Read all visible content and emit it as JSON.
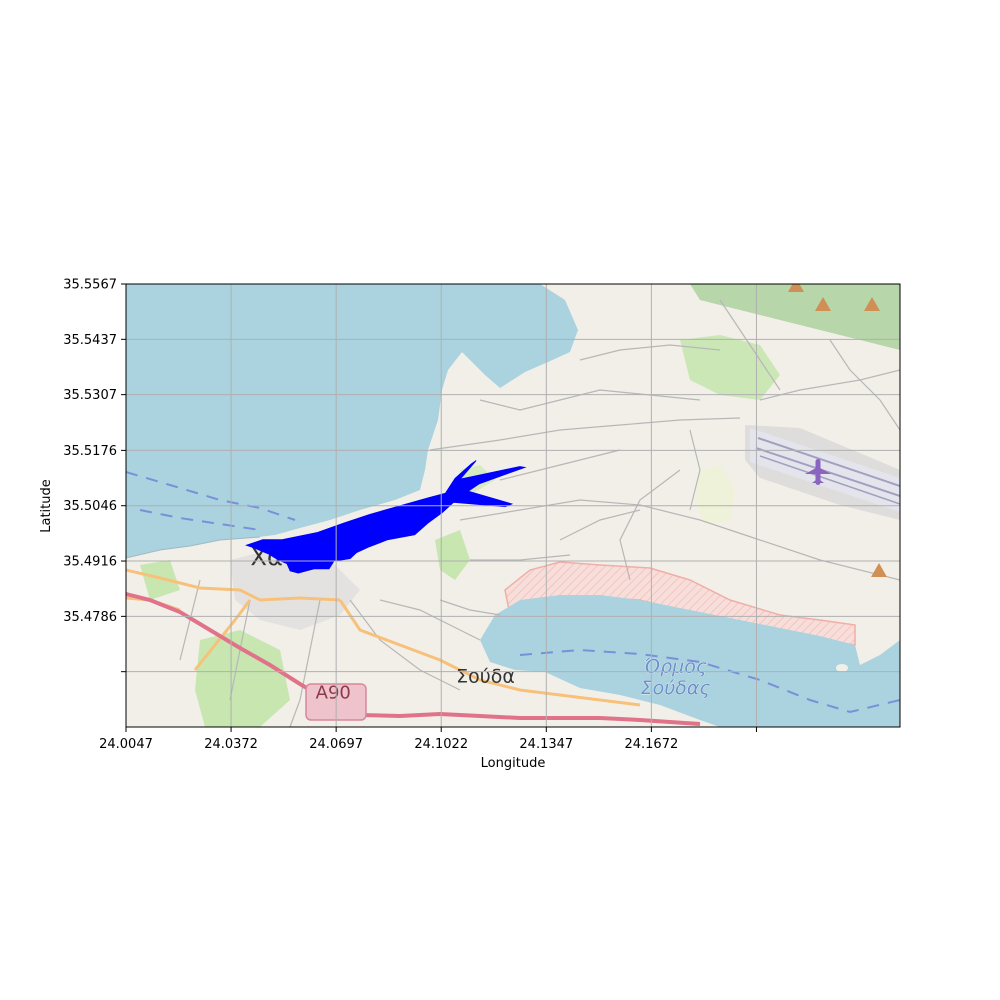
{
  "chart_data": {
    "type": "scatter",
    "title": "",
    "xlabel": "Longitude",
    "ylabel": "Latitude",
    "xlim": [
      24.0047,
      24.2441
    ],
    "ylim": [
      35.4526,
      35.5567
    ],
    "x_ticks": [
      {
        "value": 24.0047,
        "label": "24.0047"
      },
      {
        "value": 24.0372,
        "label": "24.0372"
      },
      {
        "value": 24.0697,
        "label": "24.0697"
      },
      {
        "value": 24.1022,
        "label": "24.1022"
      },
      {
        "value": 24.1347,
        "label": "24.1347"
      },
      {
        "value": 24.1672,
        "label": "24.1672"
      },
      {
        "value": 24.1997,
        "label": ""
      }
    ],
    "y_ticks": [
      {
        "value": 35.5567,
        "label": "35.5567"
      },
      {
        "value": 35.5437,
        "label": "35.5437"
      },
      {
        "value": 35.5307,
        "label": "35.5307"
      },
      {
        "value": 35.5176,
        "label": "35.5176"
      },
      {
        "value": 35.5046,
        "label": "35.5046"
      },
      {
        "value": 35.4916,
        "label": "35.4916"
      },
      {
        "value": 35.4786,
        "label": "35.4786"
      },
      {
        "value": 35.4656,
        "label": ""
      }
    ],
    "grid": true,
    "series_color": "#0000ff",
    "region_polygon": [
      [
        24.047,
        35.4966
      ],
      [
        24.053,
        35.4966
      ],
      [
        24.064,
        35.4983
      ],
      [
        24.072,
        35.5005
      ],
      [
        24.08,
        35.5025
      ],
      [
        24.09,
        35.5047
      ],
      [
        24.0985,
        35.5065
      ],
      [
        24.1035,
        35.5075
      ],
      [
        24.1065,
        35.511
      ],
      [
        24.1115,
        35.5144
      ],
      [
        24.113,
        35.5152
      ],
      [
        24.108,
        35.5108
      ],
      [
        24.113,
        35.5116
      ],
      [
        24.1265,
        35.5138
      ],
      [
        24.128,
        35.5136
      ],
      [
        24.114,
        35.5098
      ],
      [
        24.1105,
        35.508
      ],
      [
        24.124,
        35.505
      ],
      [
        24.122,
        35.5044
      ],
      [
        24.106,
        35.5054
      ],
      [
        24.1025,
        35.503
      ],
      [
        24.098,
        35.5005
      ],
      [
        24.094,
        35.4978
      ],
      [
        24.0855,
        35.4966
      ],
      [
        24.08,
        35.495
      ],
      [
        24.076,
        35.4936
      ],
      [
        24.074,
        35.4922
      ],
      [
        24.069,
        35.4916
      ],
      [
        24.0675,
        35.4898
      ],
      [
        24.063,
        35.4898
      ],
      [
        24.0605,
        35.4893
      ],
      [
        24.058,
        35.4888
      ],
      [
        24.0555,
        35.4893
      ],
      [
        24.0545,
        35.491
      ],
      [
        24.052,
        35.4918
      ],
      [
        24.049,
        35.4932
      ],
      [
        24.044,
        35.4948
      ],
      [
        24.042,
        35.4953
      ]
    ],
    "basemap": {
      "labels": [
        {
          "text": "Χα",
          "lon": 24.0482,
          "lat": 35.4907,
          "size": 24,
          "color": "#333333"
        },
        {
          "text": "Σούδα",
          "lon": 24.1159,
          "lat": 35.463,
          "size": 19,
          "color": "#333333"
        },
        {
          "text": "Όρμος",
          "lon": 24.1747,
          "lat": 35.4654,
          "size": 19,
          "color": "#6b8fc7",
          "italic": true
        },
        {
          "text": "Σούδας",
          "lon": 24.1747,
          "lat": 35.4603,
          "size": 19,
          "color": "#6b8fc7",
          "italic": true
        },
        {
          "text": "A90",
          "lon": 24.0688,
          "lat": 35.4593,
          "size": 18,
          "color": "#8a3a4a"
        }
      ],
      "colors": {
        "sea": "#aad3df",
        "land": "#f2efe9",
        "grid": "#b0b0b0",
        "motorway": "#e0738a",
        "primary": "#f7c17a",
        "protected": "#f6c8c4",
        "park": "#c8e6b0",
        "wood": "#add19e",
        "airport": "#dcdce8",
        "aeroway": "#9090b8",
        "plane": "#8a64c0",
        "peak": "#d08f55",
        "ferry": "#6b7fd6",
        "road_minor": "#b7b7b7",
        "urban": "#dedede"
      }
    }
  }
}
